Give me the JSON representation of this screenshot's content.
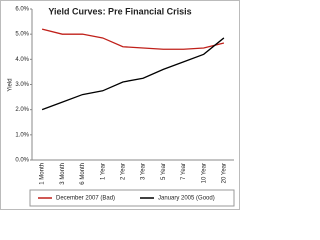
{
  "chart_data": {
    "type": "line",
    "title": "Yield Curves: Pre Financial Crisis",
    "y_label": "Yield",
    "categories": [
      "1 Month",
      "3 Month",
      "6 Month",
      "1 Year",
      "2 Year",
      "3 Year",
      "5 Year",
      "7 Year",
      "10 Year",
      "20 Year"
    ],
    "series": [
      {
        "name": "December 2007 (Bad)",
        "color": "#c0201a",
        "values": [
          5.2,
          5.0,
          5.0,
          4.85,
          4.5,
          4.45,
          4.4,
          4.4,
          4.45,
          4.65
        ]
      },
      {
        "name": "January 2005 (Good)",
        "color": "#000000",
        "values": [
          2.0,
          2.3,
          2.6,
          2.75,
          3.1,
          3.25,
          3.6,
          3.9,
          4.2,
          4.85
        ]
      }
    ],
    "ylim": [
      0,
      6
    ],
    "yticks": [
      {
        "value": 0,
        "label": "0.0%"
      },
      {
        "value": 1,
        "label": "1.0%"
      },
      {
        "value": 2,
        "label": "2.0%"
      },
      {
        "value": 3,
        "label": "3.0%"
      },
      {
        "value": 4,
        "label": "4.0%"
      },
      {
        "value": 5,
        "label": "5.0%"
      },
      {
        "value": 6,
        "label": "6.0%"
      }
    ],
    "grid": false,
    "legend": "bottom"
  }
}
